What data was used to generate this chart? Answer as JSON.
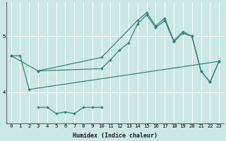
{
  "xlabel": "Humidex (Indice chaleur)",
  "bg_color": "#cce8e5",
  "line_color": "#2d7f76",
  "grid_color": "#ffffff",
  "xlim": [
    -0.5,
    23.5
  ],
  "ylim": [
    3.45,
    5.6
  ],
  "yticks": [
    4,
    5
  ],
  "xticks": [
    0,
    1,
    2,
    3,
    4,
    5,
    6,
    7,
    8,
    9,
    10,
    11,
    12,
    13,
    14,
    15,
    16,
    17,
    18,
    19,
    20,
    21,
    22,
    23
  ],
  "line1_x": [
    0,
    1,
    2,
    23
  ],
  "line1_y": [
    4.65,
    4.65,
    4.05,
    4.55
  ],
  "line2_x": [
    0,
    3,
    10,
    11,
    12,
    13,
    14,
    15,
    16,
    17,
    18,
    19,
    20,
    21,
    22,
    23
  ],
  "line2_y": [
    4.65,
    4.38,
    4.42,
    4.58,
    4.75,
    4.88,
    5.22,
    5.38,
    5.15,
    5.28,
    4.9,
    5.05,
    5.0,
    4.38,
    4.18,
    4.55
  ],
  "line3_x": [
    3,
    10,
    14,
    15,
    16,
    17,
    18,
    19,
    20,
    21,
    22,
    23
  ],
  "line3_y": [
    4.38,
    4.62,
    5.28,
    5.42,
    5.18,
    5.32,
    4.92,
    5.08,
    5.0,
    4.38,
    4.18,
    4.55
  ],
  "line4_x": [
    3,
    4,
    5,
    6,
    7,
    8,
    9,
    10
  ],
  "line4_y": [
    3.73,
    3.73,
    3.62,
    3.65,
    3.62,
    3.73,
    3.73,
    3.73
  ]
}
